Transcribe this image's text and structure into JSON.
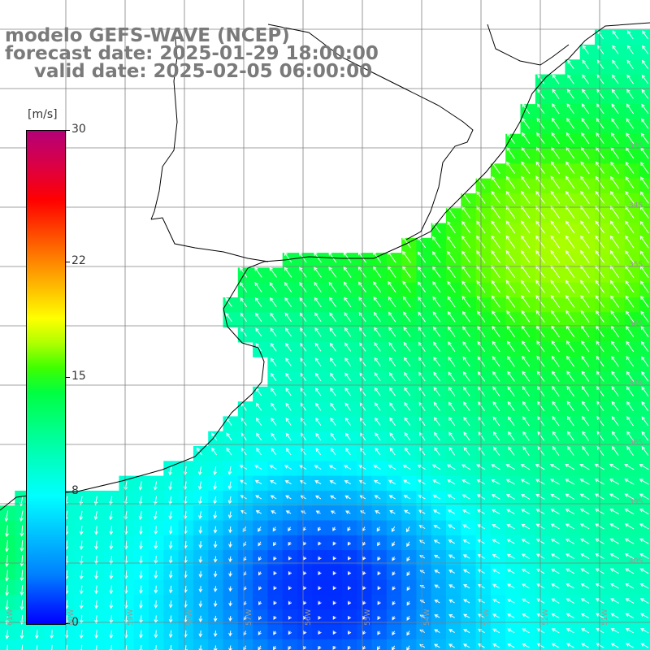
{
  "title": {
    "line1": "modelo GEFS-WAVE (NCEP)",
    "line2": "forecast date: 2025-01-29 18:00:00",
    "line3": "valid date: 2025-02-05 06:00:00"
  },
  "colorbar": {
    "unit": "[m/s]",
    "ticks": [
      {
        "label": "30",
        "value": 30
      },
      {
        "label": "22",
        "value": 22
      },
      {
        "label": "15",
        "value": 15
      },
      {
        "label": "8",
        "value": 8
      },
      {
        "label": "0",
        "value": 0
      }
    ],
    "min": 0,
    "max": 30
  },
  "longitude_labels": [
    "61W",
    "60W",
    "59W",
    "58W",
    "57W",
    "56W",
    "55W",
    "54W",
    "53W",
    "52W",
    "51W"
  ],
  "latitude_labels": [
    "33S",
    "34S",
    "35S",
    "36S",
    "37S",
    "38S",
    "39S",
    "40S"
  ],
  "colors": {
    "land": "#ffffff",
    "coastline": "#000000",
    "grid": "#808080",
    "arrow": "#ffffff",
    "title_text": "#7a7a7a"
  },
  "field": {
    "variable": "wind speed",
    "units": "m/s",
    "arrow_direction": "predominantly from southeast in north, from north/northeast in south"
  }
}
